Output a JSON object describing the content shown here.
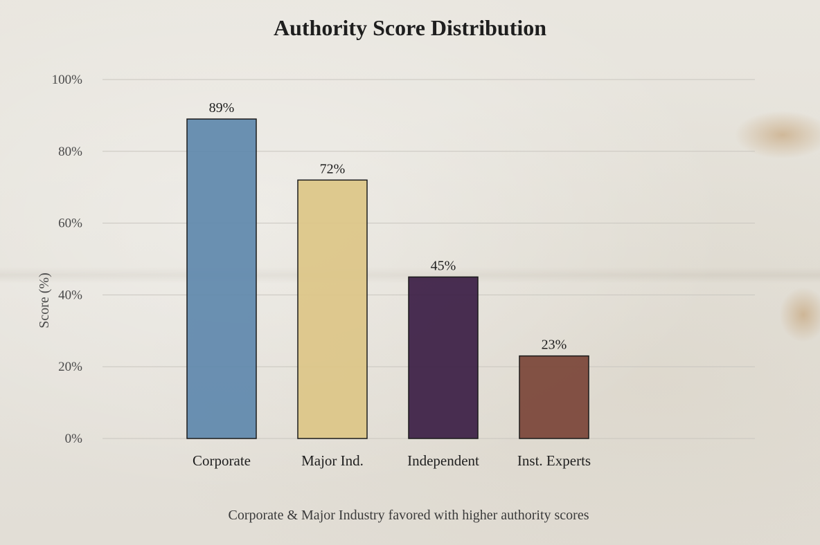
{
  "chart_data": {
    "type": "bar",
    "title": "Authority Score Distribution",
    "subtitle": "",
    "caption": "Corporate & Major Industry favored with higher authority scores",
    "xlabel": "",
    "ylabel": "Score (%)",
    "ylim": [
      0,
      100
    ],
    "yticks": [
      0,
      20,
      40,
      60,
      80,
      100
    ],
    "ytick_labels": [
      "0%",
      "20%",
      "40%",
      "60%",
      "80%",
      "100%"
    ],
    "categories": [
      "Corporate",
      "Major Ind.",
      "Independent",
      "Inst. Experts"
    ],
    "values": [
      89,
      72,
      45,
      23
    ],
    "value_labels": [
      "89%",
      "72%",
      "45%",
      "23%"
    ],
    "colors": [
      "#5e88ad",
      "#dcc587",
      "#3b1d44",
      "#7a4437"
    ],
    "grid": true,
    "legend": "none"
  }
}
